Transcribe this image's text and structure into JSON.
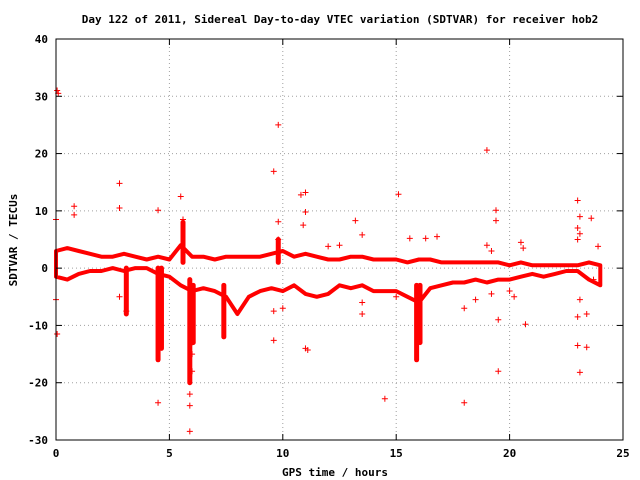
{
  "chart_data": {
    "type": "scatter",
    "title": "Day 122 of 2011, Sidereal Day-to-day VTEC variation (SDTVAR) for receiver hob2",
    "xlabel": "GPS time / hours",
    "ylabel": "SDTVAR / TECUs",
    "xlim": [
      0,
      25
    ],
    "ylim": [
      -30,
      40
    ],
    "xticks": [
      0,
      5,
      10,
      15,
      20,
      25
    ],
    "yticks": [
      -30,
      -20,
      -10,
      0,
      10,
      20,
      30,
      40
    ],
    "x_tick_labels": [
      "0",
      "5",
      "10",
      "15",
      "20",
      "25"
    ],
    "y_tick_labels": [
      "-30",
      "-20",
      "-10",
      "0",
      "10",
      "20",
      "30",
      "40"
    ],
    "grid": true,
    "legend": "none",
    "marker": "+",
    "color": "#ff0000",
    "dense_band": {
      "upper": [
        [
          0,
          3
        ],
        [
          0.5,
          3.5
        ],
        [
          1,
          3
        ],
        [
          1.5,
          2.5
        ],
        [
          2,
          2
        ],
        [
          2.5,
          2
        ],
        [
          3,
          2.5
        ],
        [
          3.5,
          2
        ],
        [
          4,
          1.5
        ],
        [
          4.5,
          2
        ],
        [
          5,
          1.5
        ],
        [
          5.5,
          4
        ],
        [
          6,
          2
        ],
        [
          6.5,
          2
        ],
        [
          7,
          1.5
        ],
        [
          7.5,
          2
        ],
        [
          8,
          2
        ],
        [
          8.5,
          2
        ],
        [
          9,
          2
        ],
        [
          9.5,
          2.5
        ],
        [
          10,
          3
        ],
        [
          10.5,
          2
        ],
        [
          11,
          2.5
        ],
        [
          11.5,
          2
        ],
        [
          12,
          1.5
        ],
        [
          12.5,
          1.5
        ],
        [
          13,
          2
        ],
        [
          13.5,
          2
        ],
        [
          14,
          1.5
        ],
        [
          14.5,
          1.5
        ],
        [
          15,
          1.5
        ],
        [
          15.5,
          1
        ],
        [
          16,
          1.5
        ],
        [
          16.5,
          1.5
        ],
        [
          17,
          1
        ],
        [
          17.5,
          1
        ],
        [
          18,
          1
        ],
        [
          18.5,
          1
        ],
        [
          19,
          1
        ],
        [
          19.5,
          1
        ],
        [
          20,
          0.5
        ],
        [
          20.5,
          1
        ],
        [
          21,
          0.5
        ],
        [
          21.5,
          0.5
        ],
        [
          22,
          0.5
        ],
        [
          22.5,
          0.5
        ],
        [
          23,
          0.5
        ],
        [
          23.5,
          1
        ],
        [
          24,
          0.5
        ]
      ],
      "lower": [
        [
          0,
          -1.5
        ],
        [
          0.5,
          -2
        ],
        [
          1,
          -1
        ],
        [
          1.5,
          -0.5
        ],
        [
          2,
          -0.5
        ],
        [
          2.5,
          0
        ],
        [
          3,
          -0.5
        ],
        [
          3.5,
          0
        ],
        [
          4,
          0
        ],
        [
          4.5,
          -1
        ],
        [
          5,
          -1.5
        ],
        [
          5.5,
          -3
        ],
        [
          6,
          -4
        ],
        [
          6.5,
          -3.5
        ],
        [
          7,
          -4
        ],
        [
          7.5,
          -5
        ],
        [
          8,
          -8
        ],
        [
          8.5,
          -5
        ],
        [
          9,
          -4
        ],
        [
          9.5,
          -3.5
        ],
        [
          10,
          -4
        ],
        [
          10.5,
          -3
        ],
        [
          11,
          -4.5
        ],
        [
          11.5,
          -5
        ],
        [
          12,
          -4.5
        ],
        [
          12.5,
          -3
        ],
        [
          13,
          -3.5
        ],
        [
          13.5,
          -3
        ],
        [
          14,
          -4
        ],
        [
          14.5,
          -4
        ],
        [
          15,
          -4
        ],
        [
          15.5,
          -5
        ],
        [
          16,
          -6
        ],
        [
          16.5,
          -3.5
        ],
        [
          17,
          -3
        ],
        [
          17.5,
          -2.5
        ],
        [
          18,
          -2.5
        ],
        [
          18.5,
          -2
        ],
        [
          19,
          -2.5
        ],
        [
          19.5,
          -2
        ],
        [
          20,
          -2
        ],
        [
          20.5,
          -1.5
        ],
        [
          21,
          -1
        ],
        [
          21.5,
          -1.5
        ],
        [
          22,
          -1
        ],
        [
          22.5,
          -0.5
        ],
        [
          23,
          -0.5
        ],
        [
          23.5,
          -2
        ],
        [
          24,
          -3
        ]
      ]
    },
    "spikes": [
      {
        "x": 4.5,
        "from": 0,
        "to": -16
      },
      {
        "x": 4.65,
        "from": 0,
        "to": -14
      },
      {
        "x": 5.9,
        "from": -2,
        "to": -20
      },
      {
        "x": 6.05,
        "from": -3,
        "to": -13
      },
      {
        "x": 7.4,
        "from": -3,
        "to": -12
      },
      {
        "x": 15.9,
        "from": -3,
        "to": -16
      },
      {
        "x": 16.05,
        "from": -3,
        "to": -13
      },
      {
        "x": 3.1,
        "from": 0,
        "to": -8
      },
      {
        "x": 5.6,
        "from": 1,
        "to": 8
      },
      {
        "x": 9.8,
        "from": 1,
        "to": 5
      }
    ],
    "outliers": [
      [
        0.05,
        31
      ],
      [
        0.1,
        30.5
      ],
      [
        0.05,
        -11.5
      ],
      [
        0,
        -5.5
      ],
      [
        0,
        8.5
      ],
      [
        0.8,
        10.8
      ],
      [
        0.8,
        9.3
      ],
      [
        2.8,
        14.8
      ],
      [
        2.8,
        10.5
      ],
      [
        2.8,
        -5
      ],
      [
        3.1,
        -7.5
      ],
      [
        4.5,
        10.1
      ],
      [
        4.5,
        -23.5
      ],
      [
        5.5,
        12.5
      ],
      [
        5.6,
        8.5
      ],
      [
        5.9,
        -28.5
      ],
      [
        5.9,
        -24
      ],
      [
        5.9,
        -22
      ],
      [
        6,
        -18
      ],
      [
        6,
        -15
      ],
      [
        6,
        -13
      ],
      [
        9.6,
        16.9
      ],
      [
        9.6,
        -7.5
      ],
      [
        9.6,
        -12.6
      ],
      [
        9.8,
        25
      ],
      [
        9.8,
        8.1
      ],
      [
        9.8,
        5
      ],
      [
        10,
        -7
      ],
      [
        10.8,
        12.8
      ],
      [
        11,
        13.2
      ],
      [
        11,
        9.8
      ],
      [
        10.9,
        7.5
      ],
      [
        11,
        -14
      ],
      [
        11.1,
        -14.3
      ],
      [
        12,
        3.8
      ],
      [
        12.5,
        4
      ],
      [
        13.2,
        8.3
      ],
      [
        13.5,
        5.8
      ],
      [
        13.5,
        -6
      ],
      [
        13.5,
        -8
      ],
      [
        14.5,
        -22.8
      ],
      [
        15.1,
        12.9
      ],
      [
        15,
        -5
      ],
      [
        15.6,
        5.2
      ],
      [
        16.3,
        5.2
      ],
      [
        16.8,
        5.5
      ],
      [
        18,
        -23.5
      ],
      [
        18,
        -7
      ],
      [
        18.5,
        -5.5
      ],
      [
        19,
        20.6
      ],
      [
        19,
        4
      ],
      [
        19.2,
        3
      ],
      [
        19.4,
        10.1
      ],
      [
        19.4,
        8.3
      ],
      [
        19.5,
        -9
      ],
      [
        19.5,
        -18
      ],
      [
        19.2,
        -4.5
      ],
      [
        20,
        -4
      ],
      [
        20.2,
        -5
      ],
      [
        20.5,
        4.5
      ],
      [
        20.6,
        3.5
      ],
      [
        20.7,
        -9.8
      ],
      [
        23,
        11.8
      ],
      [
        23.1,
        9
      ],
      [
        23,
        7
      ],
      [
        23.1,
        6
      ],
      [
        23,
        5
      ],
      [
        23,
        -8.5
      ],
      [
        23,
        -13.5
      ],
      [
        23.1,
        -18.2
      ],
      [
        23.1,
        -5.5
      ],
      [
        23.4,
        -13.8
      ],
      [
        23.6,
        8.7
      ],
      [
        23.4,
        -8
      ],
      [
        23.7,
        -2
      ],
      [
        23.9,
        3.8
      ]
    ]
  }
}
